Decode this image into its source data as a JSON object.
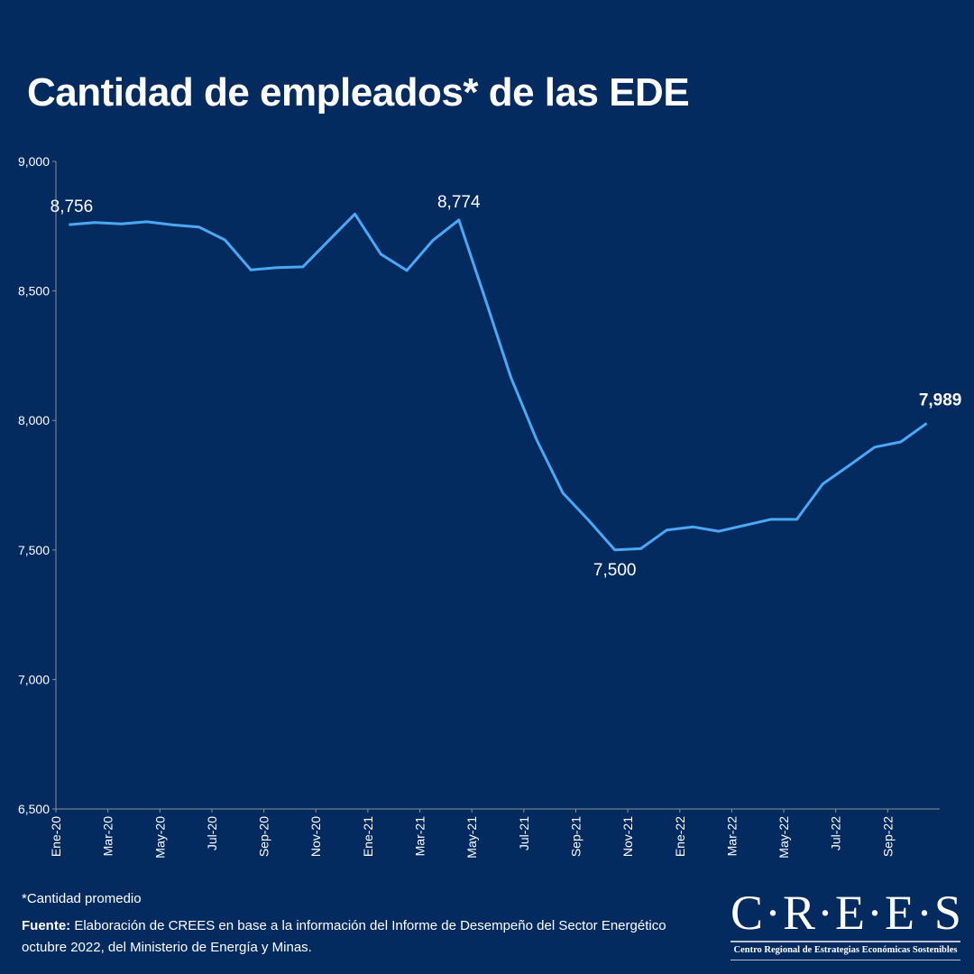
{
  "title": "Cantidad de empleados* de las EDE",
  "chart_data": {
    "type": "line",
    "title": "Cantidad de empleados* de las EDE",
    "x": [
      "Ene-20",
      "Feb-20",
      "Mar-20",
      "Abr-20",
      "May-20",
      "Jun-20",
      "Jul-20",
      "Ago-20",
      "Sep-20",
      "Oct-20",
      "Nov-20",
      "Dic-20",
      "Ene-21",
      "Feb-21",
      "Mar-21",
      "Abr-21",
      "May-21",
      "Jun-21",
      "Jul-21",
      "Ago-21",
      "Sep-21",
      "Oct-21",
      "Nov-21",
      "Dic-21",
      "Ene-22",
      "Feb-22",
      "Mar-22",
      "Abr-22",
      "May-22",
      "Jun-22",
      "Jul-22",
      "Ago-22",
      "Sep-22",
      "Oct-22"
    ],
    "x_tick_labels": [
      "Ene-20",
      "Mar-20",
      "May-20",
      "Jul-20",
      "Sep-20",
      "Nov-20",
      "Ene-21",
      "Mar-21",
      "May-21",
      "Jul-21",
      "Sep-21",
      "Nov-21",
      "Ene-22",
      "Mar-22",
      "May-22",
      "Jul-22",
      "Sep-22"
    ],
    "values": [
      8756,
      8764,
      8759,
      8767,
      8755,
      8747,
      8697,
      8581,
      8590,
      8593,
      8695,
      8797,
      8642,
      8579,
      8695,
      8774,
      8474,
      8167,
      7924,
      7720,
      7614,
      7500,
      7505,
      7577,
      7589,
      7572,
      7595,
      7618,
      7618,
      7755,
      7825,
      7897,
      7917,
      7989
    ],
    "ylim": [
      6500,
      9000
    ],
    "y_ticks": [
      "6,500",
      "7,000",
      "7,500",
      "8,000",
      "8,500",
      "9,000"
    ],
    "y_tick_values": [
      6500,
      7000,
      7500,
      8000,
      8500,
      9000
    ],
    "annotations": [
      {
        "index": 0,
        "label": "8,756"
      },
      {
        "index": 15,
        "label": "8,774"
      },
      {
        "index": 21,
        "label": "7,500"
      },
      {
        "index": 33,
        "label": "7,989"
      }
    ],
    "grid": false,
    "line_color": "#4aa8f5",
    "xlabel": "",
    "ylabel": ""
  },
  "footnote": "*Cantidad promedio",
  "source_label": "Fuente:",
  "source_text": " Elaboración de CREES en base a la información del Informe de Desempeño del Sector Energético octubre 2022, del Ministerio de Energía y Minas.",
  "logo": {
    "main": "C·R·E·E·S",
    "sub": "Centro Regional de Estrategias Económicas Sostenibles"
  },
  "colors": {
    "background": "#042b60",
    "line": "#4aa8f5",
    "text": "#ffffff"
  }
}
